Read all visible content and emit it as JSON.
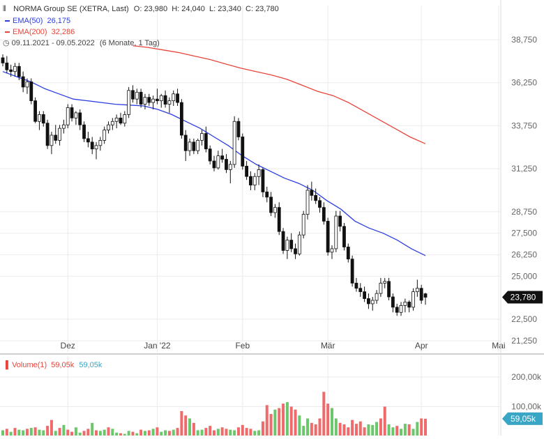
{
  "header": {
    "instrument": "NORMA Group SE (XETRA, Last)",
    "ohlc": "O: 23,980  H: 24,040  L: 23,340  C: 23,780",
    "ema50_label": "EMA(50)",
    "ema50_value": "26,175",
    "ema200_label": "EMA(200)",
    "ema200_value": "32,286",
    "range": "09.11.2021 - 09.05.2022",
    "period": "(6 Monate, 1 Tag)",
    "volume_label": "Volume(1)",
    "volume_value_a": "59,05k",
    "volume_value_b": "59,05k"
  },
  "colors": {
    "ema50": "#2b3de0",
    "ema200": "#e8443a",
    "candle_up": "#ffffff",
    "candle_down": "#111111",
    "vol_up": "#6cc66c",
    "vol_down": "#ef6b6b",
    "last_price_bg": "#111111",
    "vol_badge_bg": "#3aa6c6"
  },
  "price_axis": {
    "ticks": [
      "38,750",
      "36,250",
      "33,750",
      "31,250",
      "28,750",
      "27,500",
      "26,250",
      "25,000",
      "22,500",
      "21,250"
    ],
    "last_price_label": "23,780"
  },
  "volume_axis": {
    "ticks": [
      "200,00k",
      "100,00k"
    ],
    "last_volume_label": "59,05k"
  },
  "x_axis": {
    "labels": [
      "Dez",
      "Jan '22",
      "Feb",
      "Mär",
      "Apr",
      "Mai"
    ]
  },
  "chart_data": {
    "type": "candlestick",
    "x_ticks": [
      "Dez",
      "Jan '22",
      "Feb",
      "Mär",
      "Apr",
      "Mai"
    ],
    "tick_positions_index": [
      16,
      38,
      59,
      80,
      103,
      122
    ],
    "ylim": [
      20.5,
      39.5
    ],
    "ohlc": [
      [
        37.7,
        37.9,
        37.2,
        37.4
      ],
      [
        37.4,
        37.8,
        36.8,
        37.0
      ],
      [
        37.0,
        37.3,
        36.6,
        36.9
      ],
      [
        36.9,
        37.4,
        36.6,
        37.2
      ],
      [
        37.2,
        37.4,
        36.4,
        36.6
      ],
      [
        36.6,
        36.9,
        35.7,
        36.0
      ],
      [
        36.0,
        36.5,
        35.6,
        36.3
      ],
      [
        36.3,
        36.5,
        35.0,
        35.2
      ],
      [
        35.2,
        35.4,
        33.9,
        34.0
      ],
      [
        34.0,
        34.6,
        33.5,
        34.4
      ],
      [
        34.4,
        34.6,
        33.7,
        33.9
      ],
      [
        33.9,
        34.1,
        32.4,
        32.6
      ],
      [
        32.6,
        33.4,
        32.1,
        33.2
      ],
      [
        33.2,
        33.8,
        32.7,
        32.9
      ],
      [
        32.9,
        33.8,
        32.6,
        33.6
      ],
      [
        33.6,
        34.1,
        33.3,
        33.8
      ],
      [
        33.8,
        35.0,
        33.6,
        34.8
      ],
      [
        34.8,
        35.0,
        34.0,
        34.2
      ],
      [
        34.2,
        34.6,
        33.8,
        34.5
      ],
      [
        34.5,
        34.7,
        33.5,
        33.8
      ],
      [
        33.8,
        34.0,
        32.8,
        33.0
      ],
      [
        33.0,
        33.4,
        32.5,
        32.8
      ],
      [
        32.8,
        33.1,
        32.1,
        32.4
      ],
      [
        32.4,
        32.8,
        31.8,
        32.6
      ],
      [
        32.6,
        33.1,
        32.3,
        32.9
      ],
      [
        32.9,
        33.7,
        32.7,
        33.5
      ],
      [
        33.5,
        34.0,
        33.3,
        33.8
      ],
      [
        33.8,
        34.2,
        33.5,
        34.0
      ],
      [
        34.0,
        34.4,
        33.6,
        34.2
      ],
      [
        34.2,
        34.5,
        33.8,
        33.9
      ],
      [
        33.9,
        34.6,
        33.7,
        34.4
      ],
      [
        34.4,
        36.0,
        34.2,
        35.8
      ],
      [
        35.8,
        36.1,
        35.1,
        35.3
      ],
      [
        35.3,
        35.9,
        35.0,
        35.7
      ],
      [
        35.7,
        35.9,
        34.8,
        35.0
      ],
      [
        35.0,
        35.6,
        34.7,
        35.4
      ],
      [
        35.4,
        35.6,
        34.9,
        35.1
      ],
      [
        35.1,
        35.5,
        34.7,
        35.3
      ],
      [
        35.3,
        35.9,
        35.0,
        35.2
      ],
      [
        35.2,
        35.6,
        34.8,
        35.5
      ],
      [
        35.5,
        35.8,
        34.8,
        35.0
      ],
      [
        35.0,
        35.4,
        34.5,
        35.2
      ],
      [
        35.2,
        35.8,
        34.9,
        35.6
      ],
      [
        35.6,
        35.9,
        34.9,
        35.1
      ],
      [
        35.1,
        35.3,
        33.0,
        33.2
      ],
      [
        33.2,
        33.5,
        31.7,
        32.3
      ],
      [
        32.3,
        33.0,
        32.0,
        32.8
      ],
      [
        32.8,
        33.0,
        32.1,
        32.3
      ],
      [
        32.3,
        33.0,
        32.1,
        32.9
      ],
      [
        32.9,
        33.5,
        32.6,
        33.3
      ],
      [
        33.3,
        33.7,
        32.2,
        32.4
      ],
      [
        32.4,
        32.6,
        31.5,
        31.7
      ],
      [
        31.7,
        32.0,
        31.1,
        31.3
      ],
      [
        31.3,
        32.3,
        31.2,
        32.0
      ],
      [
        32.0,
        32.4,
        31.6,
        31.8
      ],
      [
        31.8,
        32.1,
        31.0,
        31.2
      ],
      [
        31.2,
        31.7,
        30.4,
        31.5
      ],
      [
        31.5,
        34.3,
        31.3,
        34.0
      ],
      [
        34.0,
        34.2,
        32.9,
        33.1
      ],
      [
        33.1,
        33.3,
        31.2,
        31.4
      ],
      [
        31.4,
        31.7,
        30.6,
        30.8
      ],
      [
        30.8,
        31.1,
        30.0,
        30.3
      ],
      [
        30.3,
        31.0,
        30.0,
        30.8
      ],
      [
        30.8,
        31.5,
        30.3,
        31.2
      ],
      [
        31.2,
        31.3,
        29.6,
        29.9
      ],
      [
        29.9,
        30.2,
        29.3,
        29.6
      ],
      [
        29.6,
        29.9,
        28.5,
        28.7
      ],
      [
        28.7,
        29.2,
        28.4,
        29.0
      ],
      [
        29.0,
        29.3,
        27.4,
        27.6
      ],
      [
        27.6,
        27.8,
        26.3,
        26.5
      ],
      [
        26.5,
        27.3,
        26.0,
        27.1
      ],
      [
        27.1,
        27.5,
        26.4,
        26.6
      ],
      [
        26.6,
        26.9,
        26.0,
        26.3
      ],
      [
        26.3,
        27.6,
        26.2,
        27.4
      ],
      [
        27.4,
        28.8,
        27.2,
        28.6
      ],
      [
        28.6,
        30.3,
        28.3,
        30.0
      ],
      [
        30.0,
        30.5,
        29.4,
        29.7
      ],
      [
        29.7,
        30.1,
        29.2,
        29.4
      ],
      [
        29.4,
        29.6,
        28.7,
        29.0
      ],
      [
        29.0,
        29.3,
        28.0,
        28.2
      ],
      [
        28.2,
        28.4,
        26.2,
        26.4
      ],
      [
        26.4,
        26.8,
        26.0,
        26.6
      ],
      [
        26.6,
        28.8,
        26.4,
        28.5
      ],
      [
        28.5,
        28.8,
        27.6,
        27.9
      ],
      [
        27.9,
        28.1,
        26.5,
        26.7
      ],
      [
        26.7,
        26.9,
        25.8,
        26.0
      ],
      [
        26.0,
        26.2,
        24.4,
        24.6
      ],
      [
        24.6,
        24.9,
        24.1,
        24.3
      ],
      [
        24.3,
        24.6,
        23.8,
        24.1
      ],
      [
        24.1,
        24.4,
        23.5,
        23.7
      ],
      [
        23.7,
        24.0,
        23.1,
        23.4
      ],
      [
        23.4,
        23.8,
        23.0,
        23.6
      ],
      [
        23.6,
        24.2,
        23.4,
        24.0
      ],
      [
        24.0,
        24.9,
        23.8,
        24.6
      ],
      [
        24.6,
        24.9,
        24.3,
        24.7
      ],
      [
        24.7,
        24.9,
        23.6,
        23.8
      ],
      [
        23.8,
        24.0,
        22.9,
        23.2
      ],
      [
        23.2,
        23.4,
        22.7,
        22.9
      ],
      [
        22.9,
        23.5,
        22.7,
        23.3
      ],
      [
        23.3,
        23.7,
        22.9,
        23.5
      ],
      [
        23.5,
        23.6,
        22.9,
        23.2
      ],
      [
        23.2,
        24.3,
        23.0,
        24.1
      ],
      [
        24.1,
        24.8,
        23.8,
        24.3
      ],
      [
        24.3,
        24.5,
        23.4,
        23.6
      ],
      [
        23.98,
        24.04,
        23.34,
        23.78
      ]
    ],
    "ema50": [
      36.9,
      36.6,
      36.3,
      35.9,
      35.6,
      35.3,
      35.2,
      35.1,
      35.0,
      34.95,
      34.9,
      34.7,
      34.4,
      34.0,
      33.6,
      33.1,
      32.6,
      32.0,
      31.5,
      31.1,
      30.7,
      30.4,
      30.0,
      29.4,
      28.9,
      28.2,
      27.8,
      27.5,
      27.1,
      26.6,
      26.2
    ],
    "ema200": [
      38.4,
      38.3,
      38.15,
      38.0,
      37.8,
      37.6,
      37.35,
      37.1,
      36.9,
      36.7,
      36.45,
      36.1,
      35.75,
      35.5,
      35.1,
      34.6,
      34.1,
      33.6,
      33.1,
      32.7
    ],
    "ema200_start_index": 32,
    "volume_k": [
      20,
      25,
      15,
      28,
      22,
      20,
      25,
      28,
      30,
      22,
      20,
      35,
      55,
      18,
      28,
      38,
      22,
      15,
      30,
      12,
      18,
      25,
      45,
      20,
      18,
      22,
      30,
      25,
      12,
      10,
      8,
      18,
      15,
      10,
      22,
      18,
      20,
      25,
      30,
      15,
      20,
      18,
      22,
      28,
      85,
      70,
      60,
      45,
      20,
      22,
      28,
      35,
      20,
      25,
      30,
      25,
      22,
      20,
      30,
      38,
      28,
      25,
      18,
      20,
      50,
      105,
      75,
      90,
      95,
      110,
      115,
      100,
      90,
      70,
      35,
      60,
      45,
      40,
      60,
      150,
      110,
      95,
      60,
      45,
      40,
      30,
      55,
      42,
      50,
      30,
      40,
      38,
      48,
      60,
      100,
      40,
      30,
      35,
      25,
      42,
      40,
      25,
      48,
      60,
      59
    ],
    "volume_up": [
      1,
      0,
      1,
      0,
      1,
      1,
      0,
      1,
      0,
      1,
      1,
      0,
      0,
      1,
      0,
      1,
      0,
      0,
      1,
      1,
      0,
      0,
      1,
      0,
      1,
      1,
      0,
      1,
      1,
      0,
      1,
      1,
      0,
      1,
      0,
      1,
      0,
      1,
      0,
      1,
      1,
      0,
      1,
      0,
      0,
      0,
      1,
      0,
      1,
      1,
      0,
      0,
      0,
      1,
      0,
      0,
      1,
      1,
      0,
      0,
      0,
      0,
      1,
      1,
      0,
      0,
      0,
      1,
      0,
      0,
      1,
      0,
      0,
      1,
      1,
      1,
      0,
      0,
      0,
      0,
      0,
      1,
      1,
      0,
      0,
      0,
      0,
      0,
      0,
      0,
      1,
      1,
      1,
      0,
      0,
      1,
      1,
      0,
      1,
      1,
      0,
      1,
      1,
      0,
      0
    ]
  }
}
